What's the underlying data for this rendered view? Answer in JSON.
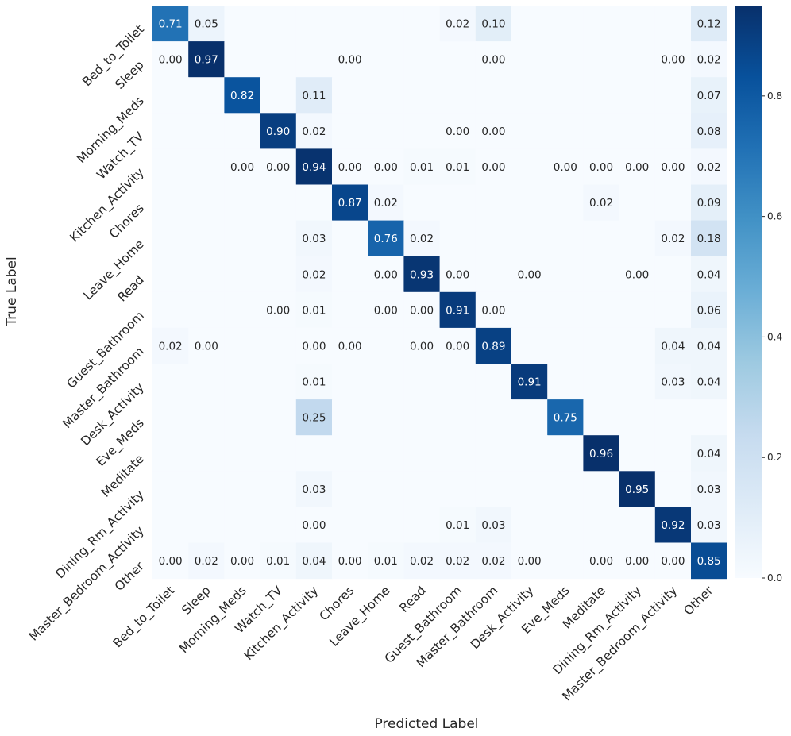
{
  "chart_data": {
    "type": "heatmap",
    "xlabel": "Predicted Label",
    "ylabel": "True Label",
    "x_categories": [
      "Bed_to_Toilet",
      "Sleep",
      "Morning_Meds",
      "Watch_TV",
      "Kitchen_Activity",
      "Chores",
      "Leave_Home",
      "Read",
      "Guest_Bathroom",
      "Master_Bathroom",
      "Desk_Activity",
      "Eve_Meds",
      "Meditate",
      "Dining_Rm_Activity",
      "Master_Bedroom_Activity",
      "Other"
    ],
    "y_categories": [
      "Bed_to_Toilet",
      "Sleep",
      "Morning_Meds",
      "Watch_TV",
      "Kitchen_Activity",
      "Chores",
      "Leave_Home",
      "Read",
      "Guest_Bathroom",
      "Master_Bathroom",
      "Desk_Activity",
      "Eve_Meds",
      "Meditate",
      "Dining_Rm_Activity",
      "Master_Bedroom_Activity",
      "Other"
    ],
    "values": [
      [
        0.71,
        0.05,
        null,
        null,
        null,
        null,
        null,
        null,
        0.02,
        0.1,
        null,
        null,
        null,
        null,
        null,
        0.12
      ],
      [
        0.0,
        0.97,
        null,
        null,
        null,
        0.0,
        null,
        null,
        null,
        0.0,
        null,
        null,
        null,
        null,
        0.0,
        0.02
      ],
      [
        null,
        null,
        0.82,
        null,
        0.11,
        null,
        null,
        null,
        null,
        null,
        null,
        null,
        null,
        null,
        null,
        0.07
      ],
      [
        null,
        null,
        null,
        0.9,
        0.02,
        null,
        null,
        null,
        0.0,
        0.0,
        null,
        null,
        null,
        null,
        null,
        0.08
      ],
      [
        null,
        null,
        0.0,
        0.0,
        0.94,
        0.0,
        0.0,
        0.01,
        0.01,
        0.0,
        null,
        0.0,
        0.0,
        0.0,
        0.0,
        0.02
      ],
      [
        null,
        null,
        null,
        null,
        null,
        0.87,
        0.02,
        null,
        null,
        null,
        null,
        null,
        0.02,
        null,
        null,
        0.09
      ],
      [
        null,
        null,
        null,
        null,
        0.03,
        null,
        0.76,
        0.02,
        null,
        null,
        null,
        null,
        null,
        null,
        0.02,
        0.18
      ],
      [
        null,
        null,
        null,
        null,
        0.02,
        null,
        0.0,
        0.93,
        0.0,
        null,
        0.0,
        null,
        null,
        0.0,
        null,
        0.04
      ],
      [
        null,
        null,
        null,
        0.0,
        0.01,
        null,
        0.0,
        0.0,
        0.91,
        0.0,
        null,
        null,
        null,
        null,
        null,
        0.06
      ],
      [
        0.02,
        0.0,
        null,
        null,
        0.0,
        0.0,
        null,
        0.0,
        0.0,
        0.89,
        null,
        null,
        null,
        null,
        0.04,
        0.04
      ],
      [
        null,
        null,
        null,
        null,
        0.01,
        null,
        null,
        null,
        null,
        null,
        0.91,
        null,
        null,
        null,
        0.03,
        0.04
      ],
      [
        null,
        null,
        null,
        null,
        0.25,
        null,
        null,
        null,
        null,
        null,
        null,
        0.75,
        null,
        null,
        null,
        null
      ],
      [
        null,
        null,
        null,
        null,
        null,
        null,
        null,
        null,
        null,
        null,
        null,
        null,
        0.96,
        null,
        null,
        0.04
      ],
      [
        null,
        null,
        null,
        null,
        0.03,
        null,
        null,
        null,
        null,
        null,
        null,
        null,
        null,
        0.95,
        null,
        0.03
      ],
      [
        null,
        null,
        null,
        null,
        0.0,
        null,
        null,
        null,
        0.01,
        0.03,
        null,
        null,
        null,
        null,
        0.92,
        0.03
      ],
      [
        0.0,
        0.02,
        0.0,
        0.01,
        0.04,
        0.0,
        0.01,
        0.02,
        0.02,
        0.02,
        0.0,
        null,
        0.0,
        0.0,
        0.0,
        0.85
      ]
    ],
    "colormap": "Blues",
    "color_range": [
      0.0,
      0.95
    ],
    "colorbar_ticks": [
      "0.0",
      "0.2",
      "0.4",
      "0.6",
      "0.8"
    ],
    "colorbar_tick_values": [
      0.0,
      0.2,
      0.4,
      0.6,
      0.8
    ],
    "grid": false,
    "legend": "colorbar-right"
  }
}
